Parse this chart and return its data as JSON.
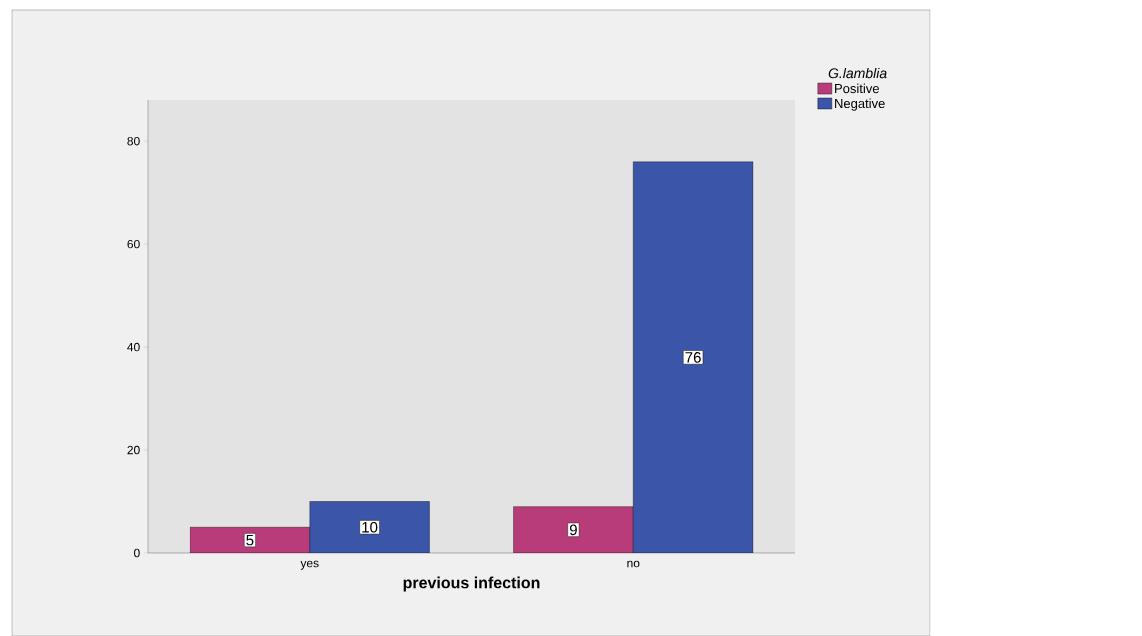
{
  "chart_data": {
    "type": "bar",
    "xlabel": "previous infection",
    "legend_title": "G.lamblia",
    "categories": [
      "yes",
      "no"
    ],
    "series": [
      {
        "name": "Positive",
        "color": "#b93c7a",
        "values": [
          5,
          9
        ]
      },
      {
        "name": "Negative",
        "color": "#3b55a8",
        "values": [
          10,
          76
        ]
      }
    ],
    "ylim": [
      0,
      88
    ],
    "yticks": [
      0,
      20,
      40,
      60,
      80
    ],
    "data_labels": true,
    "legend": "top right",
    "grid": false
  }
}
